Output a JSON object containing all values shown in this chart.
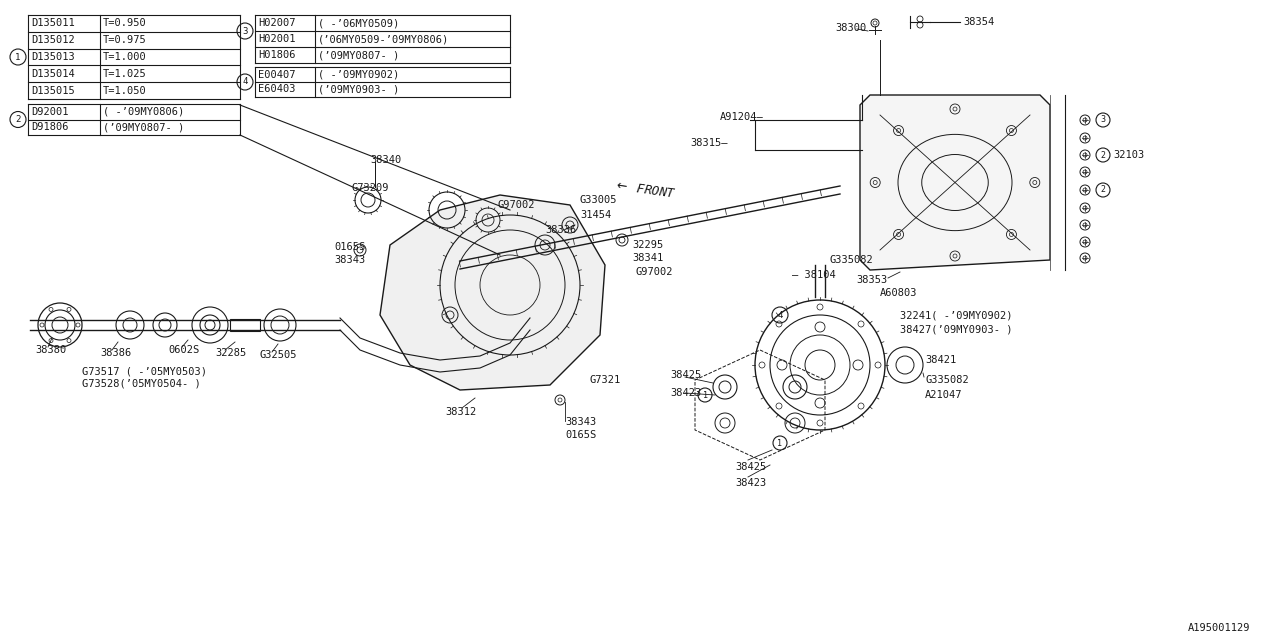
{
  "bg_color": "#ffffff",
  "line_color": "#1a1a1a",
  "text_color": "#1a1a1a",
  "font_size": 7.5,
  "font_family": "DejaVu Sans Mono",
  "table": {
    "group1_rows": [
      [
        "D135011",
        "T=0.950"
      ],
      [
        "D135012",
        "T=0.975"
      ],
      [
        "D135013",
        "T=1.000"
      ],
      [
        "D135014",
        "T=1.025"
      ],
      [
        "D135015",
        "T=1.050"
      ]
    ],
    "group2_rows": [
      [
        "D92001",
        "( -’09MY0806)"
      ],
      [
        "D91806",
        "(’09MY0807- )"
      ]
    ],
    "group3_rows": [
      [
        "H02007",
        "( -’06MY0509)"
      ],
      [
        "H02001",
        "(’06MY0509-’09MY0806)"
      ],
      [
        "H01806",
        "(’09MY0807- )"
      ]
    ],
    "group4_rows": [
      [
        "E00407",
        "( -’09MY0902)"
      ],
      [
        "E60403",
        "(’09MY0903- )"
      ]
    ]
  },
  "bottom_label": "A195001129",
  "diagram_scale": 1.0
}
